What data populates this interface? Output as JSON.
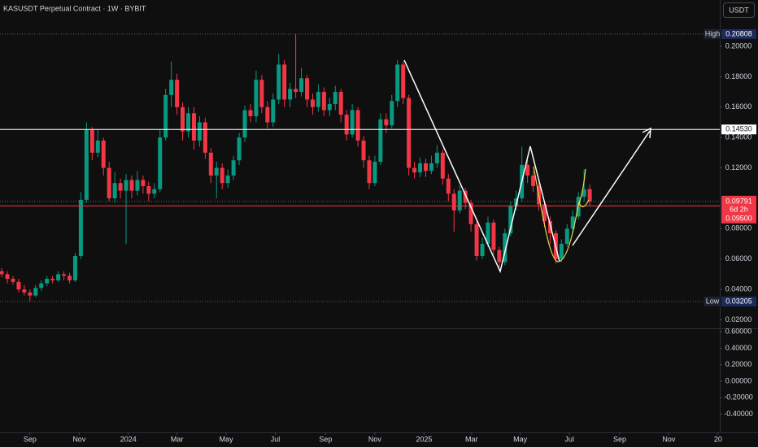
{
  "chart_data": {
    "type": "candlestick",
    "title": "KASUSDT Perpetual Contract · 1W · BYBIT",
    "currency_button": "USDT",
    "up_color": "#089981",
    "down_color": "#f23645",
    "x": [
      -5,
      -4,
      -3,
      -2,
      -1,
      0,
      1,
      2,
      3,
      4,
      5,
      6,
      7,
      8,
      9,
      10,
      11,
      12,
      13,
      14,
      15,
      16,
      17,
      18,
      19,
      20,
      21,
      22,
      23,
      24,
      25,
      26,
      27,
      28,
      29,
      30,
      31,
      32,
      33,
      34,
      35,
      36,
      37,
      38,
      39,
      40,
      41,
      42,
      43,
      44,
      45,
      46,
      47,
      48,
      49,
      50,
      51,
      52,
      53,
      54,
      55,
      56,
      57,
      58,
      59,
      60,
      61,
      62,
      63,
      64,
      65,
      66,
      67,
      68,
      69,
      70,
      71,
      72,
      73,
      74,
      75,
      76,
      77,
      78,
      79,
      80,
      81,
      82,
      83,
      84,
      85,
      86,
      87,
      88,
      89,
      90,
      91,
      92,
      93,
      94,
      95,
      96,
      97,
      98,
      99
    ],
    "series": [
      {
        "open": [
          0.052,
          0.05,
          0.047,
          0.045,
          0.04,
          0.038,
          0.036,
          0.041,
          0.044,
          0.047,
          0.046,
          0.05,
          0.049,
          0.046,
          0.062,
          0.099,
          0.145,
          0.13,
          0.138,
          0.12,
          0.1,
          0.11,
          0.105,
          0.112,
          0.105,
          0.112,
          0.108,
          0.103,
          0.106,
          0.14,
          0.168,
          0.178,
          0.16,
          0.144,
          0.156,
          0.138,
          0.15,
          0.13,
          0.115,
          0.12,
          0.11,
          0.115,
          0.125,
          0.14,
          0.158,
          0.154,
          0.178,
          0.16,
          0.15,
          0.165,
          0.188,
          0.165,
          0.172,
          0.17,
          0.179,
          0.165,
          0.16,
          0.17,
          0.158,
          0.162,
          0.17,
          0.155,
          0.142,
          0.158,
          0.138,
          0.125,
          0.11,
          0.124,
          0.152,
          0.148,
          0.164,
          0.188,
          0.166,
          0.12,
          0.117,
          0.123,
          0.118,
          0.123,
          0.13,
          0.113,
          0.103,
          0.092,
          0.105,
          0.097,
          0.083,
          0.062,
          0.07,
          0.084,
          0.066,
          0.058,
          0.077,
          0.095,
          0.1,
          0.122,
          0.115,
          0.108,
          0.096,
          0.085,
          0.077,
          0.06,
          0.07,
          0.08,
          0.088,
          0.101,
          0.106
        ],
        "high": [
          0.054,
          0.052,
          0.049,
          0.047,
          0.043,
          0.04,
          0.043,
          0.046,
          0.049,
          0.049,
          0.052,
          0.052,
          0.051,
          0.064,
          0.104,
          0.15,
          0.147,
          0.145,
          0.14,
          0.124,
          0.117,
          0.113,
          0.116,
          0.115,
          0.118,
          0.115,
          0.111,
          0.11,
          0.145,
          0.172,
          0.19,
          0.182,
          0.163,
          0.16,
          0.16,
          0.154,
          0.153,
          0.133,
          0.124,
          0.123,
          0.119,
          0.128,
          0.143,
          0.161,
          0.162,
          0.184,
          0.181,
          0.164,
          0.169,
          0.195,
          0.191,
          0.176,
          0.20808,
          0.186,
          0.181,
          0.169,
          0.175,
          0.173,
          0.166,
          0.174,
          0.172,
          0.158,
          0.162,
          0.16,
          0.141,
          0.128,
          0.128,
          0.156,
          0.156,
          0.168,
          0.191,
          0.19,
          0.168,
          0.124,
          0.127,
          0.126,
          0.128,
          0.135,
          0.132,
          0.116,
          0.106,
          0.108,
          0.107,
          0.099,
          0.085,
          0.074,
          0.088,
          0.086,
          0.068,
          0.08,
          0.098,
          0.105,
          0.134,
          0.125,
          0.118,
          0.11,
          0.098,
          0.088,
          0.079,
          0.073,
          0.083,
          0.092,
          0.104,
          0.119,
          0.109
        ],
        "low": [
          0.048,
          0.044,
          0.043,
          0.038,
          0.036,
          0.03205,
          0.035,
          0.039,
          0.042,
          0.044,
          0.045,
          0.046,
          0.044,
          0.045,
          0.06,
          0.097,
          0.125,
          0.127,
          0.115,
          0.098,
          0.097,
          0.1,
          0.07,
          0.1,
          0.102,
          0.103,
          0.098,
          0.1,
          0.104,
          0.138,
          0.16,
          0.155,
          0.138,
          0.14,
          0.132,
          0.134,
          0.126,
          0.11,
          0.1,
          0.106,
          0.107,
          0.112,
          0.122,
          0.137,
          0.15,
          0.15,
          0.156,
          0.146,
          0.147,
          0.162,
          0.16,
          0.16,
          0.166,
          0.167,
          0.16,
          0.155,
          0.157,
          0.154,
          0.154,
          0.158,
          0.15,
          0.138,
          0.14,
          0.134,
          0.12,
          0.106,
          0.108,
          0.122,
          0.143,
          0.146,
          0.16,
          0.162,
          0.115,
          0.113,
          0.114,
          0.114,
          0.116,
          0.12,
          0.109,
          0.098,
          0.078,
          0.09,
          0.093,
          0.078,
          0.059,
          0.06,
          0.068,
          0.063,
          0.054,
          0.056,
          0.075,
          0.092,
          0.098,
          0.11,
          0.104,
          0.092,
          0.081,
          0.07,
          0.057,
          0.058,
          0.068,
          0.077,
          0.086,
          0.098,
          0.095
        ],
        "close": [
          0.05,
          0.047,
          0.045,
          0.04,
          0.038,
          0.036,
          0.041,
          0.044,
          0.047,
          0.046,
          0.05,
          0.049,
          0.046,
          0.062,
          0.099,
          0.145,
          0.13,
          0.138,
          0.12,
          0.1,
          0.11,
          0.105,
          0.112,
          0.105,
          0.112,
          0.108,
          0.103,
          0.106,
          0.14,
          0.168,
          0.178,
          0.16,
          0.144,
          0.156,
          0.138,
          0.15,
          0.13,
          0.115,
          0.12,
          0.11,
          0.115,
          0.125,
          0.14,
          0.158,
          0.154,
          0.178,
          0.16,
          0.15,
          0.165,
          0.188,
          0.165,
          0.172,
          0.17,
          0.179,
          0.165,
          0.16,
          0.17,
          0.158,
          0.162,
          0.17,
          0.155,
          0.142,
          0.158,
          0.138,
          0.125,
          0.11,
          0.124,
          0.152,
          0.148,
          0.164,
          0.188,
          0.166,
          0.12,
          0.117,
          0.123,
          0.118,
          0.123,
          0.13,
          0.113,
          0.103,
          0.092,
          0.105,
          0.097,
          0.083,
          0.062,
          0.07,
          0.084,
          0.066,
          0.058,
          0.077,
          0.095,
          0.1,
          0.122,
          0.115,
          0.108,
          0.096,
          0.085,
          0.077,
          0.06,
          0.07,
          0.08,
          0.088,
          0.101,
          0.106,
          0.0979
        ]
      }
    ],
    "xlim": [
      -5.3,
      122
    ],
    "xticks": [
      {
        "value": 0,
        "label": "Sep"
      },
      {
        "value": 8.7,
        "label": "Nov"
      },
      {
        "value": 17.4,
        "label": "2024"
      },
      {
        "value": 26,
        "label": "Mar"
      },
      {
        "value": 34.7,
        "label": "May"
      },
      {
        "value": 43.4,
        "label": "Jul"
      },
      {
        "value": 52.3,
        "label": "Sep"
      },
      {
        "value": 61,
        "label": "Nov"
      },
      {
        "value": 69.7,
        "label": "2025"
      },
      {
        "value": 78.1,
        "label": "Mar"
      },
      {
        "value": 86.7,
        "label": "May"
      },
      {
        "value": 95.4,
        "label": "Jul"
      },
      {
        "value": 104.3,
        "label": "Sep"
      },
      {
        "value": 113,
        "label": "Nov"
      },
      {
        "value": 121.7,
        "label": "20"
      }
    ],
    "ylim": [
      0.0144,
      0.2305
    ],
    "yticks": [
      {
        "value": 0.02,
        "label": "0.02000"
      },
      {
        "value": 0.04,
        "label": "0.04000"
      },
      {
        "value": 0.06,
        "label": "0.06000"
      },
      {
        "value": 0.08,
        "label": "0.08000"
      },
      {
        "value": 0.12,
        "label": "0.12000"
      },
      {
        "value": 0.14,
        "label": "0.14000"
      },
      {
        "value": 0.16,
        "label": "0.16000"
      },
      {
        "value": 0.18,
        "label": "0.18000"
      },
      {
        "value": 0.2,
        "label": "0.20000"
      }
    ],
    "grid": false,
    "price_markers": [
      {
        "style": "extreme",
        "tag": "High",
        "value": 0.20808,
        "label": "0.20808"
      },
      {
        "style": "extreme",
        "tag": "Low",
        "value": 0.03205,
        "label": "0.03205"
      },
      {
        "style": "line",
        "color": "#ffffff",
        "value": 0.1453,
        "label": "0.14530"
      },
      {
        "style": "current",
        "color": "#f23645",
        "value": 0.09791,
        "label": "0.09791",
        "countdown": "6d 2h"
      },
      {
        "style": "stacked-line",
        "color": "#f23645",
        "value": 0.095,
        "label": "0.09500"
      }
    ],
    "indicator_pane": {
      "ylim": [
        -0.62,
        0.64
      ],
      "yticks": [
        {
          "value": 0.6,
          "label": "0.60000"
        },
        {
          "value": 0.4,
          "label": "0.40000"
        },
        {
          "value": 0.2,
          "label": "0.20000"
        },
        {
          "value": 0,
          "label": "0.00000"
        },
        {
          "value": -0.2,
          "label": "-0.20000"
        },
        {
          "value": -0.4,
          "label": "-0.40000"
        }
      ]
    }
  }
}
